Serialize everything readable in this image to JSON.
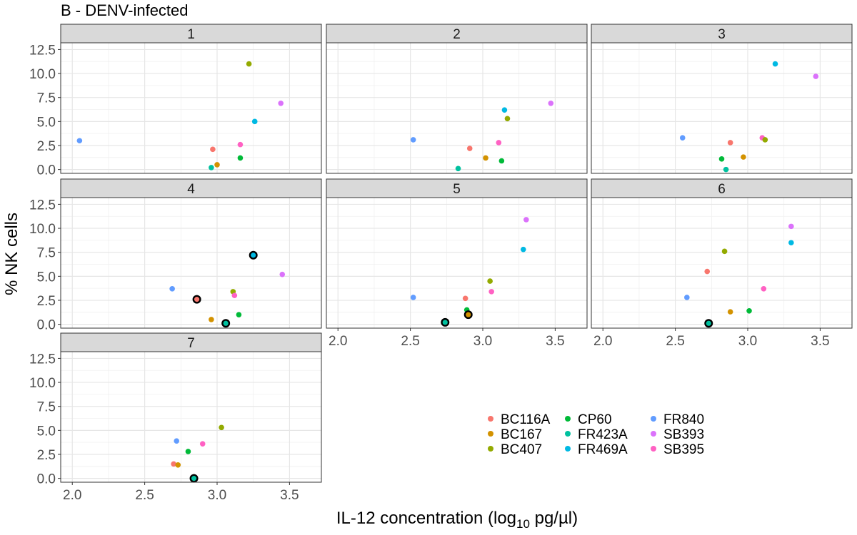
{
  "chart_data": {
    "type": "scatter",
    "title": "B - DENV-infected",
    "xlabel": {
      "prefix": "IL-12 concentration (log",
      "sub": "10",
      "suffix": " pg/µl)"
    },
    "ylabel": "% NK cells",
    "xlim": [
      1.92,
      3.72
    ],
    "ylim": [
      -0.4,
      13.2
    ],
    "x_ticks": [
      2.0,
      2.5,
      3.0,
      3.5
    ],
    "x_tick_labels": [
      "2.0",
      "2.5",
      "3.0",
      "3.5"
    ],
    "y_ticks": [
      0,
      2.5,
      5,
      7.5,
      10,
      12.5
    ],
    "y_tick_labels": [
      "0.0",
      "2.5",
      "5.0",
      "7.5",
      "10.0",
      "12.5"
    ],
    "grid": true,
    "legend_position": "bottom-right",
    "series": [
      {
        "name": "BC116A",
        "color": "#F8766D"
      },
      {
        "name": "BC167",
        "color": "#D39200"
      },
      {
        "name": "BC407",
        "color": "#93AA00"
      },
      {
        "name": "CP60",
        "color": "#00BA38"
      },
      {
        "name": "FR423A",
        "color": "#00C19F"
      },
      {
        "name": "FR469A",
        "color": "#00B9E3"
      },
      {
        "name": "FR840",
        "color": "#619CFF"
      },
      {
        "name": "SB393",
        "color": "#DB72FB"
      },
      {
        "name": "SB395",
        "color": "#FF61C3"
      }
    ],
    "panels": [
      {
        "label": "1",
        "points": [
          {
            "series": "FR840",
            "x": 2.05,
            "y": 3.0
          },
          {
            "series": "BC116A",
            "x": 2.97,
            "y": 2.1
          },
          {
            "series": "BC167",
            "x": 3.0,
            "y": 0.5
          },
          {
            "series": "FR423A",
            "x": 2.96,
            "y": 0.2
          },
          {
            "series": "CP60",
            "x": 3.16,
            "y": 1.2
          },
          {
            "series": "SB395",
            "x": 3.16,
            "y": 2.6
          },
          {
            "series": "FR469A",
            "x": 3.26,
            "y": 5.0
          },
          {
            "series": "BC407",
            "x": 3.22,
            "y": 11.0
          },
          {
            "series": "SB393",
            "x": 3.44,
            "y": 6.9
          }
        ]
      },
      {
        "label": "2",
        "points": [
          {
            "series": "FR840",
            "x": 2.52,
            "y": 3.1
          },
          {
            "series": "BC116A",
            "x": 2.91,
            "y": 2.2
          },
          {
            "series": "FR423A",
            "x": 2.83,
            "y": 0.1
          },
          {
            "series": "BC167",
            "x": 3.02,
            "y": 1.2
          },
          {
            "series": "CP60",
            "x": 3.13,
            "y": 0.9
          },
          {
            "series": "SB395",
            "x": 3.11,
            "y": 2.8
          },
          {
            "series": "BC407",
            "x": 3.17,
            "y": 5.3
          },
          {
            "series": "FR469A",
            "x": 3.15,
            "y": 6.2
          },
          {
            "series": "SB393",
            "x": 3.47,
            "y": 6.9
          }
        ]
      },
      {
        "label": "3",
        "points": [
          {
            "series": "FR840",
            "x": 2.55,
            "y": 3.3
          },
          {
            "series": "BC116A",
            "x": 2.88,
            "y": 2.8
          },
          {
            "series": "CP60",
            "x": 2.82,
            "y": 1.1
          },
          {
            "series": "FR423A",
            "x": 2.85,
            "y": 0.0
          },
          {
            "series": "BC167",
            "x": 2.97,
            "y": 1.3
          },
          {
            "series": "SB395",
            "x": 3.1,
            "y": 3.3
          },
          {
            "series": "BC407",
            "x": 3.12,
            "y": 3.1
          },
          {
            "series": "FR469A",
            "x": 3.19,
            "y": 11.0
          },
          {
            "series": "SB393",
            "x": 3.47,
            "y": 9.7
          }
        ]
      },
      {
        "label": "4",
        "points": [
          {
            "series": "FR840",
            "x": 2.69,
            "y": 3.7
          },
          {
            "series": "BC116A",
            "x": 2.86,
            "y": 2.6,
            "highlight": true
          },
          {
            "series": "BC167",
            "x": 2.96,
            "y": 0.5
          },
          {
            "series": "FR423A",
            "x": 3.06,
            "y": 0.1,
            "highlight": true
          },
          {
            "series": "CP60",
            "x": 3.15,
            "y": 1.0
          },
          {
            "series": "BC407",
            "x": 3.11,
            "y": 3.4
          },
          {
            "series": "SB395",
            "x": 3.12,
            "y": 3.0
          },
          {
            "series": "FR469A",
            "x": 3.25,
            "y": 7.2,
            "highlight": true
          },
          {
            "series": "SB393",
            "x": 3.45,
            "y": 5.2
          }
        ]
      },
      {
        "label": "5",
        "points": [
          {
            "series": "FR840",
            "x": 2.52,
            "y": 2.8
          },
          {
            "series": "FR423A",
            "x": 2.74,
            "y": 0.2,
            "highlight": true
          },
          {
            "series": "BC116A",
            "x": 2.88,
            "y": 2.7
          },
          {
            "series": "CP60",
            "x": 2.89,
            "y": 1.5
          },
          {
            "series": "BC167",
            "x": 2.9,
            "y": 1.0,
            "highlight": true
          },
          {
            "series": "BC407",
            "x": 3.05,
            "y": 4.5
          },
          {
            "series": "SB395",
            "x": 3.06,
            "y": 3.4
          },
          {
            "series": "FR469A",
            "x": 3.28,
            "y": 7.8
          },
          {
            "series": "SB393",
            "x": 3.3,
            "y": 10.9
          }
        ]
      },
      {
        "label": "6",
        "points": [
          {
            "series": "FR840",
            "x": 2.58,
            "y": 2.8
          },
          {
            "series": "BC116A",
            "x": 2.72,
            "y": 5.5
          },
          {
            "series": "FR423A",
            "x": 2.73,
            "y": 0.1,
            "highlight": true
          },
          {
            "series": "BC407",
            "x": 2.84,
            "y": 7.6
          },
          {
            "series": "BC167",
            "x": 2.88,
            "y": 1.3
          },
          {
            "series": "CP60",
            "x": 3.01,
            "y": 1.4
          },
          {
            "series": "SB395",
            "x": 3.11,
            "y": 3.7
          },
          {
            "series": "FR469A",
            "x": 3.3,
            "y": 8.5
          },
          {
            "series": "SB393",
            "x": 3.3,
            "y": 10.2
          }
        ]
      },
      {
        "label": "7",
        "points": [
          {
            "series": "BC116A",
            "x": 2.7,
            "y": 1.5
          },
          {
            "series": "BC167",
            "x": 2.73,
            "y": 1.4
          },
          {
            "series": "FR840",
            "x": 2.72,
            "y": 3.9
          },
          {
            "series": "CP60",
            "x": 2.8,
            "y": 2.8
          },
          {
            "series": "FR423A",
            "x": 2.84,
            "y": 0.0,
            "highlight": true
          },
          {
            "series": "SB395",
            "x": 2.9,
            "y": 3.6
          },
          {
            "series": "BC407",
            "x": 3.03,
            "y": 5.3
          }
        ]
      }
    ]
  }
}
